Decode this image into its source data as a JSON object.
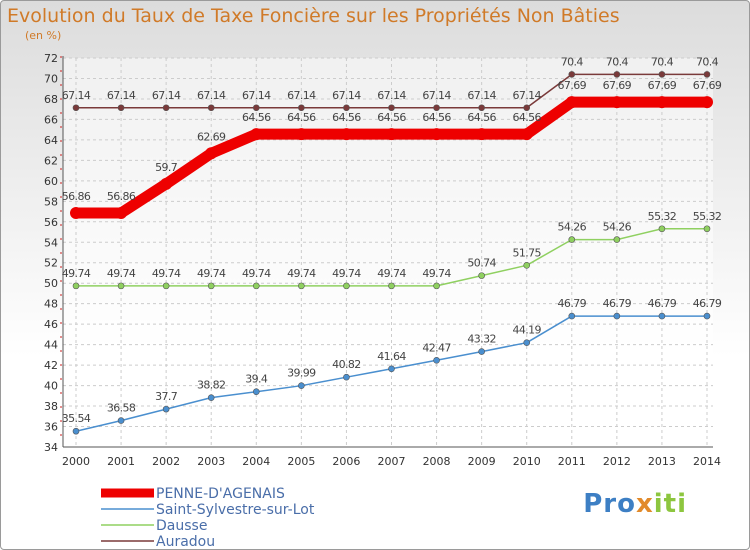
{
  "chart_data": {
    "type": "line",
    "title": "Evolution du Taux de Taxe Foncière sur les Propriétés Non Bâties",
    "ylabel": "(en %)",
    "xlabel": "",
    "ylim": [
      34,
      72
    ],
    "ytick_step": 2,
    "x": [
      "2000",
      "2001",
      "2002",
      "2003",
      "2004",
      "2005",
      "2006",
      "2007",
      "2008",
      "2009",
      "2010",
      "2011",
      "2012",
      "2013",
      "2014"
    ],
    "series": [
      {
        "name": "PENNE-D'AGENAIS",
        "color": "#ee0000",
        "width": 11,
        "values": [
          56.86,
          56.86,
          59.7,
          62.69,
          64.56,
          64.56,
          64.56,
          64.56,
          64.56,
          64.56,
          64.56,
          67.69,
          67.69,
          67.69,
          67.69
        ],
        "labels": [
          "56.86",
          "56.86",
          "59.7",
          "62.69",
          "64.56",
          "64.56",
          "64.56",
          "64.56",
          "64.56",
          "64.56",
          "64.56",
          "67.69",
          "67.69",
          "67.69",
          "67.69"
        ]
      },
      {
        "name": "Saint-Sylvestre-sur-Lot",
        "color": "#4a8fcf",
        "width": 1.5,
        "values": [
          35.54,
          36.58,
          37.7,
          38.82,
          39.4,
          39.99,
          40.82,
          41.64,
          42.47,
          43.32,
          44.19,
          46.79,
          46.79,
          46.79,
          46.79
        ],
        "labels": [
          "35.54",
          "36.58",
          "37.7",
          "38.82",
          "39.4",
          "39.99",
          "40.82",
          "41.64",
          "42.47",
          "43.32",
          "44.19",
          "46.79",
          "46.79",
          "46.79",
          "46.79"
        ]
      },
      {
        "name": "Dausse",
        "color": "#8fd060",
        "width": 1.5,
        "values": [
          49.74,
          49.74,
          49.74,
          49.74,
          49.74,
          49.74,
          49.74,
          49.74,
          49.74,
          50.74,
          51.75,
          54.26,
          54.26,
          55.32,
          55.32
        ],
        "labels": [
          "49.74",
          "49.74",
          "49.74",
          "49.74",
          "49.74",
          "49.74",
          "49.74",
          "49.74",
          "49.74",
          "50.74",
          "51.75",
          "54.26",
          "54.26",
          "55.32",
          "55.32"
        ]
      },
      {
        "name": "Auradou",
        "color": "#7a3a3a",
        "width": 1.5,
        "values": [
          67.14,
          67.14,
          67.14,
          67.14,
          67.14,
          67.14,
          67.14,
          67.14,
          67.14,
          67.14,
          67.14,
          70.4,
          70.4,
          70.4,
          70.4
        ],
        "labels": [
          "67.14",
          "67.14",
          "67.14",
          "67.14",
          "67.14",
          "67.14",
          "67.14",
          "67.14",
          "67.14",
          "67.14",
          "67.14",
          "70.4",
          "70.4",
          "70.4",
          "70.4"
        ]
      }
    ],
    "legend_position": "bottom-left"
  },
  "logo": {
    "part1": "Pro",
    "part2": "x",
    "part3": "iti"
  }
}
